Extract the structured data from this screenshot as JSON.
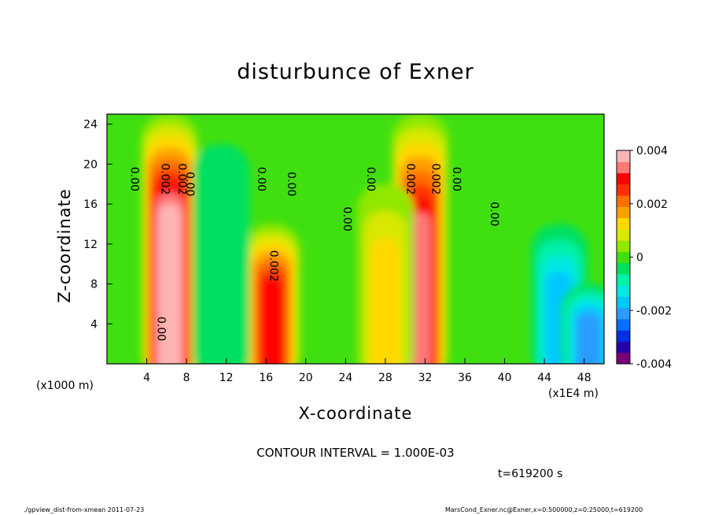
{
  "chart_data": {
    "type": "heatmap",
    "title": "disturbunce of Exner",
    "xlabel": "X-coordinate",
    "ylabel": "Z-coordinate",
    "x_unit_left": "(x1000 m)",
    "x_unit_right": "(x1E4 m)",
    "xlim": [
      0,
      50
    ],
    "ylim": [
      0,
      25
    ],
    "x_ticks": [
      "4",
      "8",
      "12",
      "16",
      "20",
      "24",
      "28",
      "32",
      "36",
      "40",
      "44",
      "48"
    ],
    "y_ticks": [
      "4",
      "8",
      "12",
      "16",
      "20",
      "24"
    ],
    "colorbar": {
      "range": [
        -0.004,
        0.004
      ],
      "tick_labels": [
        "0.004",
        "0.002",
        "0",
        "-0.002",
        "-0.004"
      ],
      "colors": [
        "#7a007a",
        "#2a00a8",
        "#0030e0",
        "#0070ff",
        "#2a9cff",
        "#00c8ff",
        "#00e8e0",
        "#00f0a8",
        "#00e060",
        "#40e010",
        "#90e800",
        "#d8e800",
        "#ffd800",
        "#ffa000",
        "#ff7000",
        "#ff3000",
        "#ff0000",
        "#ff7878",
        "#ffb4b4"
      ]
    },
    "features": [
      {
        "x": 6.3,
        "z_top": 25,
        "value": 0.0042,
        "label": "strong positive column"
      },
      {
        "x": 31.5,
        "z_top": 25,
        "value": 0.0035,
        "label": "strong positive column"
      },
      {
        "x": 16.6,
        "z_top": 14,
        "value": 0.0028,
        "label": "positive column"
      },
      {
        "x": 28.0,
        "z_top": 18,
        "value": 0.0013,
        "label": "weak positive"
      },
      {
        "x": 45.5,
        "z_top": 14,
        "value": -0.0016,
        "label": "negative region"
      },
      {
        "x": 48.5,
        "z_top": 8,
        "value": -0.0022,
        "label": "negative region"
      },
      {
        "x": 11.5,
        "z_top": 22,
        "value": -0.0006,
        "label": "weak negative"
      }
    ],
    "contour_labels": [
      {
        "text": "0.00",
        "x": 2.4,
        "z": 18.5
      },
      {
        "text": "0.002",
        "x": 5.5,
        "z": 18.5
      },
      {
        "text": "0.002",
        "x": 7.2,
        "z": 18.5
      },
      {
        "text": "0.00",
        "x": 8.0,
        "z": 18.0
      },
      {
        "text": "0.00",
        "x": 15.2,
        "z": 18.5
      },
      {
        "text": "0.00",
        "x": 18.2,
        "z": 18.0
      },
      {
        "text": "0.00",
        "x": 23.8,
        "z": 14.5
      },
      {
        "text": "0.00",
        "x": 26.2,
        "z": 18.5
      },
      {
        "text": "0.002",
        "x": 30.2,
        "z": 18.5
      },
      {
        "text": "0.002",
        "x": 32.7,
        "z": 18.5
      },
      {
        "text": "0.00",
        "x": 34.8,
        "z": 18.5
      },
      {
        "text": "0.00",
        "x": 38.6,
        "z": 15.0
      },
      {
        "text": "0.002",
        "x": 16.4,
        "z": 9.8
      },
      {
        "text": "0.00",
        "x": 5.1,
        "z": 3.5
      }
    ]
  },
  "contour_interval": "CONTOUR INTERVAL = 1.000E-03",
  "time_label": "t=619200 s",
  "footer_left": "./gpview_dist-from-xmean  2011-07-23",
  "footer_right": "MarsCond_Exner.nc@Exner,x=0:500000,z=0:25000,t=619200"
}
